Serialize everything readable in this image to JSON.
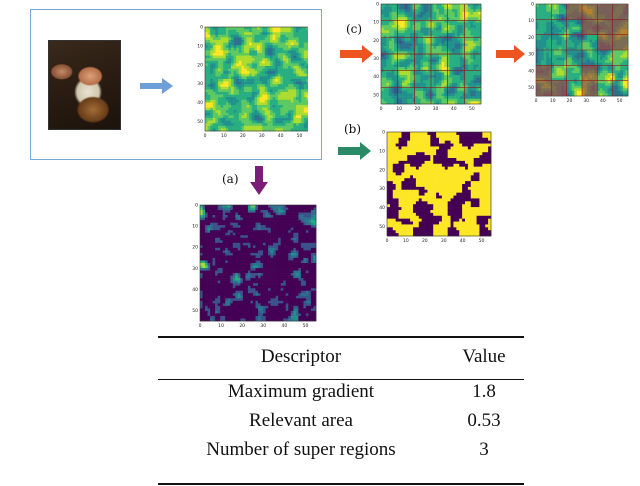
{
  "labels": {
    "a": "(a)",
    "b": "(b)",
    "c": "(c)"
  },
  "colors": {
    "input_border": "#7aa7d6",
    "arrow_blue": "#6f9fd8",
    "arrow_purple": "#7b1e7a",
    "arrow_green": "#2a8a68",
    "arrow_orange": "#ee5420",
    "viridis_dark": "#440154",
    "viridis_yellow": "#fde725"
  },
  "panels": {
    "input_map_ticks_y": [
      "0",
      "10",
      "20",
      "30",
      "40",
      "50"
    ],
    "input_map_ticks_x": [
      "0",
      "10",
      "20",
      "30",
      "40",
      "50"
    ],
    "gradient_ticks_y": [
      "0",
      "10",
      "20",
      "30",
      "40",
      "50"
    ],
    "gradient_ticks_x": [
      "0",
      "10",
      "20",
      "30",
      "40",
      "50"
    ],
    "binary_ticks_y": [
      "0",
      "10",
      "20",
      "30",
      "40",
      "50"
    ],
    "binary_ticks_x": [
      "0",
      "10",
      "20",
      "30",
      "40",
      "50"
    ],
    "grid_ticks_y": [
      "0",
      "10",
      "20",
      "30",
      "40",
      "50"
    ],
    "grid_ticks_x": [
      "0",
      "10",
      "20",
      "30",
      "40",
      "50"
    ],
    "super_ticks_y": [
      "0",
      "10",
      "20",
      "30",
      "40",
      "50"
    ],
    "super_ticks_x": [
      "0",
      "10",
      "20",
      "30",
      "40",
      "50"
    ]
  },
  "table": {
    "headers": [
      "Descriptor",
      "Value"
    ],
    "rows": [
      {
        "descriptor": "Maximum gradient",
        "value": "1.8"
      },
      {
        "descriptor": "Relevant area",
        "value": "0.53"
      },
      {
        "descriptor": "Number of super regions",
        "value": "3"
      }
    ]
  }
}
